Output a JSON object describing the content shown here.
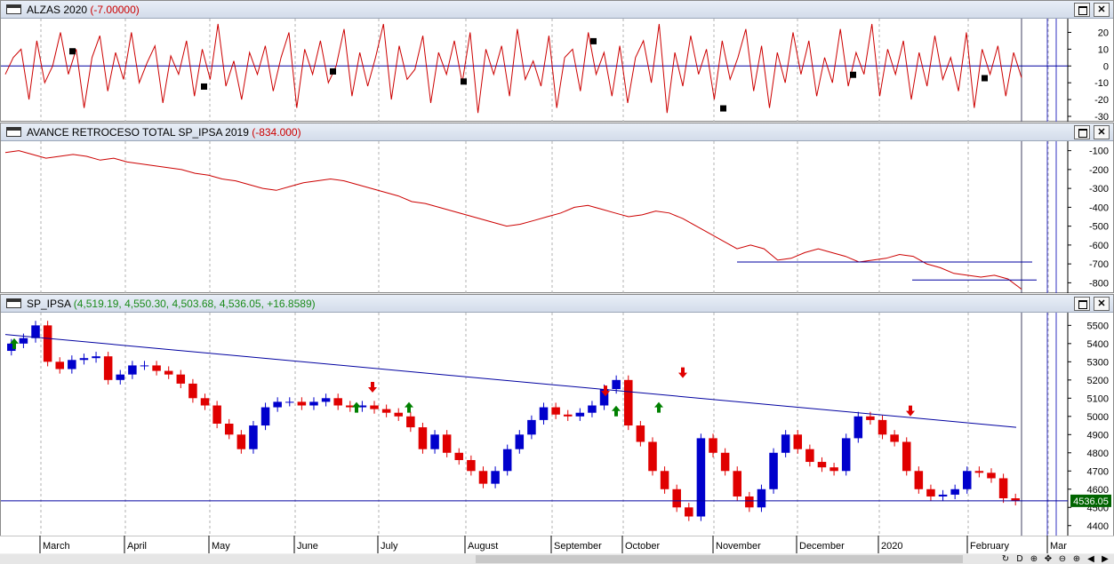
{
  "panes": {
    "alzas": {
      "title": "ALZAS 2020",
      "value": "(-7.00000)",
      "yticks": [
        "20",
        "10",
        "0",
        "-10",
        "-20",
        "-30"
      ]
    },
    "avance": {
      "title": "AVANCE RETROCESO TOTAL SP_IPSA 2019",
      "value": "(-834.000)",
      "yticks": [
        "-100",
        "-200",
        "-300",
        "-400",
        "-500",
        "-600",
        "-700",
        "-800"
      ]
    },
    "ipsa": {
      "title": "SP_IPSA",
      "value": "(4,519.19, 4,550.30, 4,503.68, 4,536.05, +16.8589)",
      "yticks": [
        "5500",
        "5400",
        "5300",
        "5200",
        "5100",
        "5000",
        "4900",
        "4800",
        "4700",
        "4600",
        "4500",
        "4400"
      ],
      "last_price": "4536.05"
    }
  },
  "months": [
    "March",
    "April",
    "May",
    "June",
    "July",
    "August",
    "September",
    "October",
    "November",
    "December",
    "2020",
    "February",
    "Mar"
  ],
  "window_buttons": {
    "maximize": "□",
    "close": "✕"
  },
  "nav_icons": [
    "↻",
    "D",
    "⊕",
    "✥",
    "⊖",
    "⊕",
    "◀",
    "▶"
  ],
  "colors": {
    "up_candle": "#0000cc",
    "down_candle": "#e00000",
    "osc_line": "#cc0000",
    "trend": "#0000a0",
    "marker_up": "#008000",
    "marker_down": "#e00000"
  },
  "chart_data": [
    {
      "type": "line",
      "title": "ALZAS 2020",
      "ylim": [
        -30,
        25
      ],
      "last": -7,
      "values": [
        -5,
        5,
        10,
        -20,
        15,
        -10,
        0,
        20,
        -5,
        10,
        -25,
        5,
        18,
        -15,
        8,
        -8,
        20,
        -10,
        2,
        12,
        -22,
        6,
        -5,
        15,
        -18,
        10,
        -8,
        25,
        -12,
        3,
        -20,
        8,
        -5,
        12,
        -15,
        5,
        20,
        -25,
        10,
        -5,
        15,
        -10,
        0,
        22,
        -18,
        8,
        -12,
        5,
        25,
        -20,
        12,
        -8,
        -2,
        18,
        -22,
        8,
        -5,
        15,
        -10,
        20,
        -28,
        10,
        -5,
        12,
        -18,
        22,
        -8,
        3,
        -12,
        18,
        -25,
        5,
        10,
        -15,
        20,
        -5,
        8,
        -18,
        12,
        -22,
        5,
        15,
        -10,
        25,
        -28,
        8,
        -12,
        18,
        -5,
        10,
        -20,
        15,
        -8,
        5,
        22,
        -15,
        12,
        -25,
        8,
        -10,
        20,
        -5,
        15,
        -18,
        5,
        -10,
        22,
        -12,
        8,
        -5,
        25,
        -18,
        10,
        -5,
        15,
        -20,
        8,
        -12,
        18,
        -8,
        5,
        -15,
        20,
        -25,
        10,
        -5,
        12,
        -18,
        8,
        -7
      ]
    },
    {
      "type": "line",
      "title": "AVANCE RETROCESO TOTAL SP_IPSA 2019",
      "ylim": [
        -850,
        -50
      ],
      "last": -834,
      "values": [
        -110,
        -100,
        -120,
        -140,
        -130,
        -120,
        -130,
        -150,
        -140,
        -160,
        -170,
        -180,
        -190,
        -200,
        -220,
        -230,
        -250,
        -260,
        -280,
        -300,
        -310,
        -290,
        -270,
        -260,
        -250,
        -260,
        -280,
        -300,
        -320,
        -340,
        -370,
        -380,
        -400,
        -420,
        -440,
        -460,
        -480,
        -500,
        -490,
        -470,
        -450,
        -430,
        -400,
        -390,
        -410,
        -430,
        -450,
        -440,
        -420,
        -430,
        -460,
        -500,
        -540,
        -580,
        -620,
        -600,
        -620,
        -680,
        -670,
        -640,
        -620,
        -640,
        -660,
        -690,
        -680,
        -670,
        -650,
        -660,
        -700,
        -720,
        -750,
        -760,
        -770,
        -760,
        -780,
        -834
      ]
    },
    {
      "type": "candlestick",
      "title": "SP_IPSA",
      "ylim": [
        4350,
        5570
      ],
      "last": 4536.05,
      "closes": [
        5400,
        5430,
        5500,
        5300,
        5260,
        5310,
        5320,
        5330,
        5200,
        5230,
        5280,
        5280,
        5250,
        5230,
        5180,
        5100,
        5060,
        4960,
        4900,
        4820,
        4950,
        5050,
        5080,
        5080,
        5060,
        5080,
        5100,
        5060,
        5050,
        5060,
        5040,
        5020,
        5000,
        4940,
        4820,
        4900,
        4800,
        4760,
        4700,
        4630,
        4700,
        4820,
        4900,
        4980,
        5050,
        5010,
        5000,
        5020,
        5060,
        5150,
        5200,
        4950,
        4860,
        4700,
        4600,
        4500,
        4450,
        4880,
        4800,
        4700,
        4560,
        4500,
        4600,
        4800,
        4900,
        4820,
        4750,
        4720,
        4700,
        4880,
        5000,
        4980,
        4900,
        4860,
        4700,
        4600,
        4560,
        4570,
        4600,
        4700,
        4690,
        4660,
        4550,
        4536
      ],
      "trendline": {
        "from": 5450,
        "to": 4940
      },
      "hline": 4536.05
    }
  ]
}
